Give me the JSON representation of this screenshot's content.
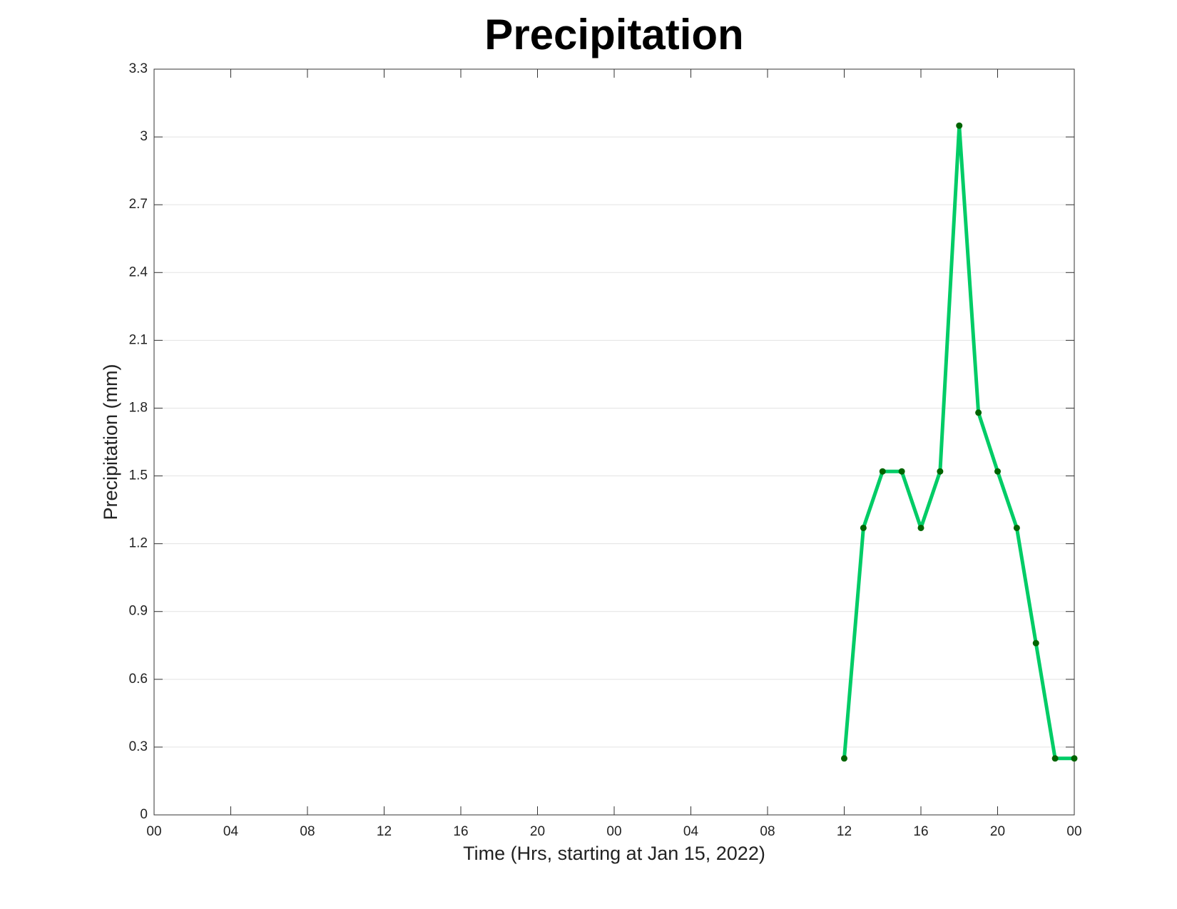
{
  "chart_data": {
    "type": "line",
    "title": "Precipitation",
    "x_label": "Time (Hrs, starting at Jan 15, 2022)",
    "y_label": "Precipitation (mm)",
    "x": [
      36,
      37,
      38,
      39,
      40,
      41,
      42,
      43,
      44,
      45,
      46,
      47,
      48
    ],
    "series": [
      {
        "name": "Precipitation",
        "color": "#00cc66",
        "marker_color": "#006400",
        "values": [
          0.25,
          1.27,
          1.52,
          1.52,
          1.27,
          1.52,
          3.05,
          1.78,
          1.52,
          1.27,
          0.76,
          0.25,
          0.25
        ]
      }
    ],
    "xlim": [
      0,
      48
    ],
    "xticks": [
      {
        "value": 0,
        "label": "00"
      },
      {
        "value": 4,
        "label": "04"
      },
      {
        "value": 8,
        "label": "08"
      },
      12,
      16,
      20,
      {
        "value": 24,
        "label": "00"
      },
      {
        "value": 28,
        "label": "04"
      },
      {
        "value": 32,
        "label": "08"
      },
      {
        "value": 36,
        "label": "12"
      },
      {
        "value": 40,
        "label": "16"
      },
      {
        "value": 44,
        "label": "20"
      },
      {
        "value": 48,
        "label": "00"
      }
    ],
    "ylim": [
      0,
      3.3
    ],
    "yticks": [
      0,
      0.3,
      0.6,
      0.9,
      1.2,
      1.5,
      1.8,
      2.1,
      2.4,
      2.7,
      3,
      3.3
    ],
    "grid": true
  }
}
